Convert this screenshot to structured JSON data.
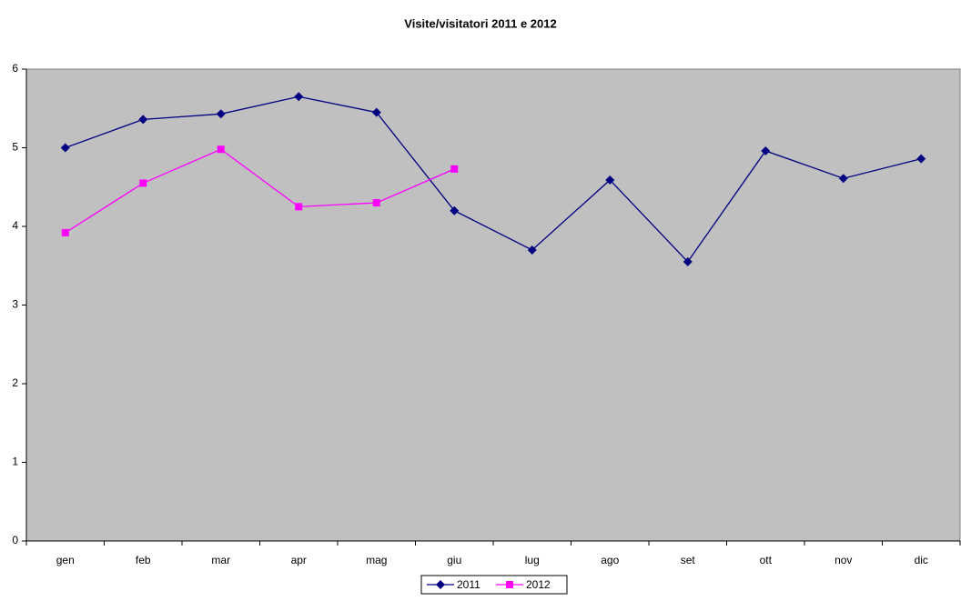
{
  "chart_data": {
    "type": "line",
    "title": "Visite/visitatori 2011 e 2012",
    "categories": [
      "gen",
      "feb",
      "mar",
      "apr",
      "mag",
      "giu",
      "lug",
      "ago",
      "set",
      "ott",
      "nov",
      "dic"
    ],
    "series": [
      {
        "name": "2011",
        "color": "#000080",
        "marker": "diamond",
        "values": [
          5.0,
          5.36,
          5.43,
          5.65,
          5.45,
          4.2,
          3.7,
          4.59,
          3.55,
          4.96,
          4.61,
          4.86
        ]
      },
      {
        "name": "2012",
        "color": "#ff00ff",
        "marker": "square",
        "values": [
          3.92,
          4.55,
          4.98,
          4.25,
          4.3,
          4.73,
          null,
          null,
          null,
          null,
          null,
          null
        ]
      }
    ],
    "ylim": [
      0,
      6
    ],
    "yticks": [
      0,
      1,
      2,
      3,
      4,
      5,
      6
    ],
    "grid": false,
    "legend": "bottom",
    "plot_background": "#c0c0c0"
  }
}
